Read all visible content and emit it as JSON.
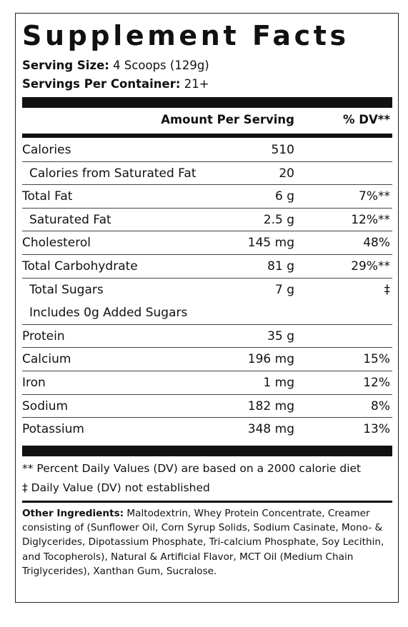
{
  "title": "Supplement Facts",
  "serving_size": {
    "label": "Serving Size:",
    "value": " 4 Scoops (129g)"
  },
  "servings_per_container": {
    "label": "Servings Per Container:",
    "value": " 21+"
  },
  "header": {
    "amount": "Amount Per Serving",
    "dv": "% DV**"
  },
  "rows": [
    {
      "label": "Calories",
      "amount": "510",
      "dv": ""
    },
    {
      "label": "Calories from Saturated Fat",
      "amount": "20",
      "dv": ""
    },
    {
      "label": "Total Fat",
      "amount": "6 g",
      "dv": "7%**"
    },
    {
      "label": "Saturated Fat",
      "amount": "2.5 g",
      "dv": "12%**"
    },
    {
      "label": "Cholesterol",
      "amount": "145 mg",
      "dv": "48%"
    },
    {
      "label": "Total Carbohydrate",
      "amount": "81 g",
      "dv": "29%**"
    },
    {
      "label": "Total Sugars",
      "amount": "7 g",
      "dv": "‡"
    },
    {
      "label": "Includes 0g Added Sugars",
      "amount": "",
      "dv": ""
    },
    {
      "label": "Protein",
      "amount": "35 g",
      "dv": ""
    },
    {
      "label": "Calcium",
      "amount": "196 mg",
      "dv": "15%"
    },
    {
      "label": "Iron",
      "amount": "1 mg",
      "dv": "12%"
    },
    {
      "label": "Sodium",
      "amount": "182 mg",
      "dv": "8%"
    },
    {
      "label": "Potassium",
      "amount": "348 mg",
      "dv": "13%"
    }
  ],
  "footnotes": {
    "dv_note": "** Percent Daily Values (DV) are based on a 2000 calorie diet",
    "dagger_note": "‡ Daily Value (DV) not established"
  },
  "ingredients": {
    "label": "Other Ingredients:",
    "text": " Maltodextrin, Whey Protein Concentrate, Creamer consisting of (Sunflower Oil, Corn Syrup Solids, Sodium Casinate, Mono- & Diglycerides, Dipotassium Phosphate, Tri-calcium Phosphate, Soy Lecithin, and Tocopherols), Natural & Artificial Flavor, MCT Oil (Medium Chain Triglycerides), Xanthan Gum, Sucralose."
  }
}
